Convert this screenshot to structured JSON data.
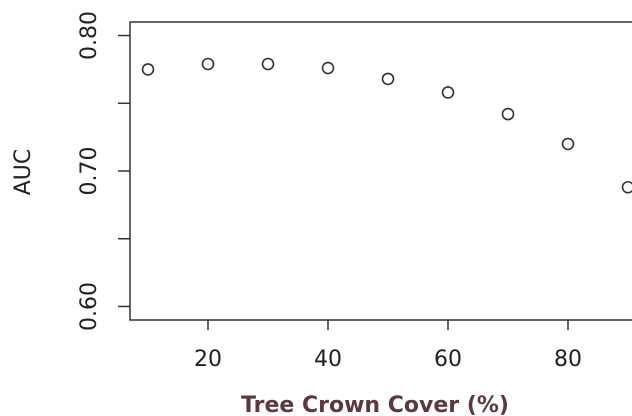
{
  "chart_data": {
    "type": "scatter",
    "title": "",
    "xlabel": "Tree Crown Cover (%)",
    "ylabel": "AUC",
    "xlim": [
      7,
      92
    ],
    "ylim": [
      0.59,
      0.81
    ],
    "x_ticks": [
      20,
      40,
      60,
      80
    ],
    "y_ticks": [
      0.6,
      0.65,
      0.7,
      0.75,
      0.8
    ],
    "y_tick_labels": [
      "0.60",
      "",
      "0.70",
      "",
      "0.80"
    ],
    "grid": false,
    "legend": "none",
    "marker": "open-circle",
    "colors": {
      "points": "#333333",
      "axis": "#333333",
      "xlabel": "#5a3a3e"
    },
    "series": [
      {
        "x": [
          10,
          20,
          30,
          40,
          50,
          60,
          70,
          80,
          90
        ],
        "y": [
          0.775,
          0.779,
          0.779,
          0.776,
          0.768,
          0.758,
          0.742,
          0.72,
          0.688
        ]
      }
    ]
  }
}
